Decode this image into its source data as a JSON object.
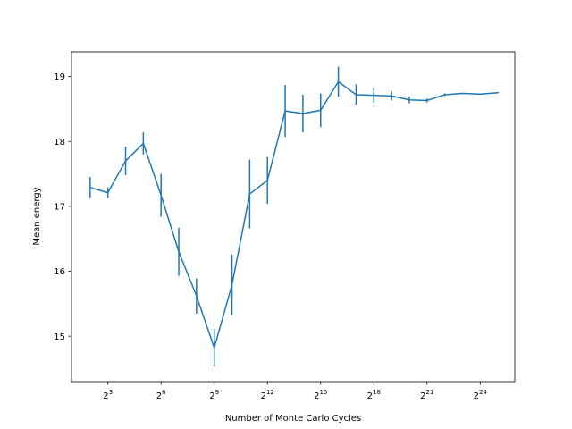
{
  "chart_data": {
    "type": "line",
    "title": "",
    "xlabel": "Number of Monte Carlo Cycles",
    "ylabel": "Mean energy",
    "x_scale": "log2",
    "xlim_exp": [
      0.95,
      25.95
    ],
    "ylim": [
      14.3,
      19.38
    ],
    "grid": false,
    "legend": "none",
    "line_color": "#1f77b4",
    "x_ticks": [
      {
        "exp": 3,
        "base": "2",
        "sup": "3"
      },
      {
        "exp": 6,
        "base": "2",
        "sup": "6"
      },
      {
        "exp": 9,
        "base": "2",
        "sup": "9"
      },
      {
        "exp": 12,
        "base": "2",
        "sup": "12"
      },
      {
        "exp": 15,
        "base": "2",
        "sup": "15"
      },
      {
        "exp": 18,
        "base": "2",
        "sup": "18"
      },
      {
        "exp": 21,
        "base": "2",
        "sup": "21"
      },
      {
        "exp": 24,
        "base": "2",
        "sup": "24"
      }
    ],
    "y_ticks": [
      {
        "value": 15,
        "label": "15"
      },
      {
        "value": 16,
        "label": "16"
      },
      {
        "value": 17,
        "label": "17"
      },
      {
        "value": 18,
        "label": "18"
      },
      {
        "value": 19,
        "label": "19"
      }
    ],
    "series": [
      {
        "x_exp": [
          2,
          3,
          4,
          5,
          6,
          7,
          8,
          9,
          10,
          11,
          12,
          13,
          14,
          15,
          16,
          17,
          18,
          19,
          20,
          21,
          22,
          23,
          24,
          25
        ],
        "values": [
          17.29,
          17.21,
          17.7,
          17.97,
          17.17,
          16.3,
          15.62,
          14.82,
          15.79,
          17.19,
          17.4,
          18.47,
          18.43,
          18.48,
          18.92,
          18.72,
          18.71,
          18.7,
          18.64,
          18.63,
          18.72,
          18.74,
          18.73,
          18.75
        ],
        "errors": [
          0.16,
          0.08,
          0.22,
          0.17,
          0.33,
          0.37,
          0.27,
          0.29,
          0.47,
          0.53,
          0.36,
          0.4,
          0.29,
          0.26,
          0.23,
          0.16,
          0.11,
          0.07,
          0.05,
          0.03,
          0.02,
          0.01,
          0.01,
          0.01
        ]
      }
    ]
  }
}
